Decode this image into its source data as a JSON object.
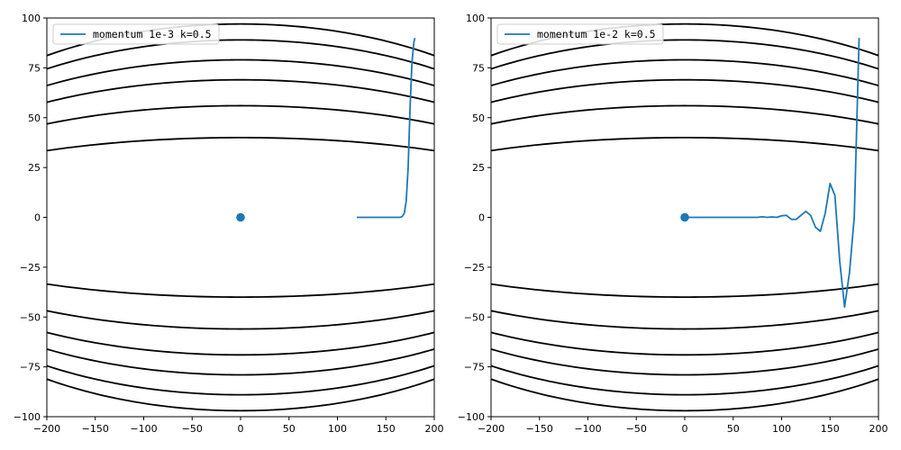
{
  "chart_data": [
    {
      "type": "line",
      "title": "",
      "xlabel": "",
      "ylabel": "",
      "xlim": [
        -200,
        200
      ],
      "ylim": [
        -100,
        100
      ],
      "xticks": [
        -200,
        -150,
        -100,
        -50,
        0,
        50,
        100,
        150,
        200
      ],
      "yticks": [
        -100,
        -75,
        -50,
        -25,
        0,
        25,
        50,
        75,
        100
      ],
      "xtick_labels": [
        "−200",
        "−150",
        "−100",
        "−50",
        "0",
        "50",
        "100",
        "150",
        "200"
      ],
      "ytick_labels": [
        "−100",
        "−75",
        "−50",
        "−25",
        "0",
        "25",
        "50",
        "75",
        "100"
      ],
      "grid": false,
      "legend_position": "top-left",
      "contour_color": "#000000",
      "contour_levels_y_at_x0": [
        40,
        56,
        69,
        79,
        89,
        97
      ],
      "contour_curvature": 0.3,
      "marker": {
        "x": 0,
        "y": 0,
        "color": "#1f77b4"
      },
      "series": [
        {
          "name": "momentum 1e-3 k=0.5",
          "color": "#1f77b4",
          "x": [
            120,
            130,
            140,
            150,
            160,
            165,
            167,
            169,
            171,
            173,
            175,
            177,
            179,
            180
          ],
          "y": [
            0,
            0,
            0,
            0,
            0,
            0,
            0.5,
            2,
            8,
            25,
            55,
            78,
            88,
            90
          ]
        }
      ]
    },
    {
      "type": "line",
      "title": "",
      "xlabel": "",
      "ylabel": "",
      "xlim": [
        -200,
        200
      ],
      "ylim": [
        -100,
        100
      ],
      "xticks": [
        -200,
        -150,
        -100,
        -50,
        0,
        50,
        100,
        150,
        200
      ],
      "yticks": [
        -100,
        -75,
        -50,
        -25,
        0,
        25,
        50,
        75,
        100
      ],
      "xtick_labels": [
        "−200",
        "−150",
        "−100",
        "−50",
        "0",
        "50",
        "100",
        "150",
        "200"
      ],
      "ytick_labels": [
        "−100",
        "−75",
        "−50",
        "−25",
        "0",
        "25",
        "50",
        "75",
        "100"
      ],
      "grid": false,
      "legend_position": "top-left",
      "contour_color": "#000000",
      "contour_levels_y_at_x0": [
        40,
        56,
        69,
        79,
        89,
        97
      ],
      "contour_curvature": 0.3,
      "marker": {
        "x": 0,
        "y": 0,
        "color": "#1f77b4"
      },
      "series": [
        {
          "name": "momentum 1e-2 k=0.5",
          "color": "#1f77b4",
          "x": [
            0,
            20,
            40,
            60,
            70,
            75,
            80,
            85,
            90,
            95,
            100,
            105,
            110,
            115,
            120,
            125,
            130,
            135,
            140,
            145,
            150,
            155,
            160,
            165,
            170,
            175,
            180
          ],
          "y": [
            0,
            0,
            0,
            0,
            0,
            0,
            0.3,
            0,
            0.2,
            0,
            0.8,
            1,
            -1,
            -1,
            1,
            3,
            1,
            -5,
            -7,
            2,
            17,
            11,
            -22,
            -45,
            -28,
            0,
            90
          ]
        }
      ]
    }
  ]
}
